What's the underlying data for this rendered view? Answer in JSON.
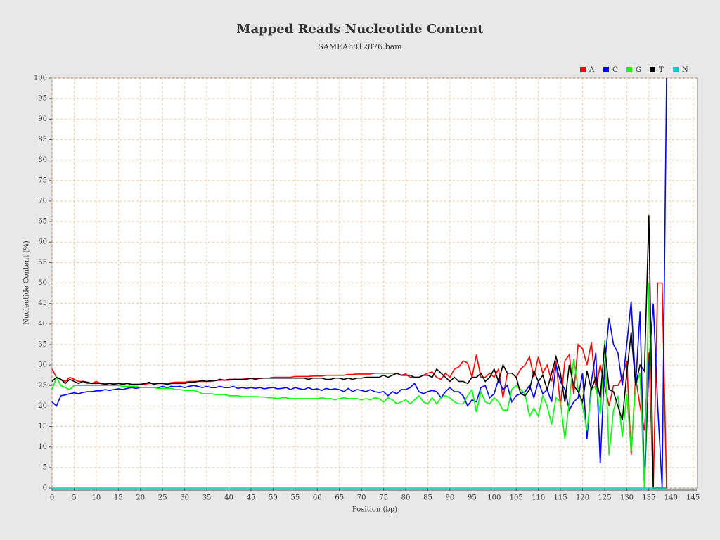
{
  "chart_data": {
    "type": "line",
    "title": "Mapped Reads Nucleotide Content",
    "subtitle": "SAMEA6812876.bam",
    "xlabel": "Position (bp)",
    "ylabel": "Nucleotide Content (%)",
    "xlim": [
      0,
      146
    ],
    "ylim": [
      0,
      100
    ],
    "xticks": [
      0,
      5,
      10,
      15,
      20,
      25,
      30,
      35,
      40,
      45,
      50,
      55,
      60,
      65,
      70,
      75,
      80,
      85,
      90,
      95,
      100,
      105,
      110,
      115,
      120,
      125,
      130,
      135,
      140,
      145
    ],
    "yticks": [
      0,
      5,
      10,
      15,
      20,
      25,
      30,
      35,
      40,
      45,
      50,
      55,
      60,
      65,
      70,
      75,
      80,
      85,
      90,
      95,
      100
    ],
    "grid": true,
    "legend": "top-right",
    "x": [
      0,
      1,
      2,
      3,
      4,
      5,
      6,
      7,
      8,
      9,
      10,
      11,
      12,
      13,
      14,
      15,
      16,
      17,
      18,
      19,
      20,
      21,
      22,
      23,
      24,
      25,
      26,
      27,
      28,
      29,
      30,
      31,
      32,
      33,
      34,
      35,
      36,
      37,
      38,
      39,
      40,
      41,
      42,
      43,
      44,
      45,
      46,
      47,
      48,
      49,
      50,
      51,
      52,
      53,
      54,
      55,
      56,
      57,
      58,
      59,
      60,
      61,
      62,
      63,
      64,
      65,
      66,
      67,
      68,
      69,
      70,
      71,
      72,
      73,
      74,
      75,
      76,
      77,
      78,
      79,
      80,
      81,
      82,
      83,
      84,
      85,
      86,
      87,
      88,
      89,
      90,
      91,
      92,
      93,
      94,
      95,
      96,
      97,
      98,
      99,
      100,
      101,
      102,
      103,
      104,
      105,
      106,
      107,
      108,
      109,
      110,
      111,
      112,
      113,
      114,
      115,
      116,
      117,
      118,
      119,
      120,
      121,
      122,
      123,
      124,
      125,
      126,
      127,
      128,
      129,
      130,
      131,
      132,
      133,
      134,
      135,
      136,
      137,
      138,
      139
    ],
    "series": [
      {
        "name": "A",
        "color": "#ff0000",
        "values": [
          29,
          27,
          26.5,
          26,
          27,
          26.5,
          26,
          26,
          25.5,
          25.5,
          26,
          25.5,
          25.5,
          25.5,
          25.5,
          25.5,
          25.5,
          25.5,
          25.3,
          25.3,
          25.3,
          25.3,
          25.5,
          25.5,
          25.5,
          25.5,
          25.5,
          25.7,
          25.8,
          25.8,
          25.8,
          26,
          26,
          26,
          26,
          26,
          26,
          26.2,
          26.3,
          26.3,
          26.3,
          26.5,
          26.5,
          26.5,
          26.7,
          26.7,
          26.7,
          26.7,
          26.8,
          26.8,
          27,
          27,
          27,
          27,
          27,
          27.2,
          27.2,
          27.2,
          27.2,
          27.3,
          27.3,
          27.3,
          27.5,
          27.5,
          27.5,
          27.5,
          27.5,
          27.7,
          27.7,
          27.8,
          27.8,
          27.8,
          27.8,
          28,
          28,
          28,
          28,
          28,
          28,
          27.5,
          27.8,
          27,
          27,
          27,
          27.5,
          28,
          28.3,
          27,
          26.5,
          28,
          27,
          29,
          29.5,
          31,
          30.5,
          27,
          32.5,
          27,
          27,
          28,
          27,
          29,
          22,
          28,
          28,
          27,
          29,
          30,
          32,
          27,
          32,
          28,
          30,
          26,
          31,
          20,
          31,
          32.5,
          23,
          35,
          34,
          30,
          35.5,
          24,
          30,
          25,
          20,
          25,
          25,
          27,
          31,
          8,
          27,
          20,
          14,
          33,
          0,
          50,
          50,
          0
        ]
      },
      {
        "name": "C",
        "color": "#0000ff",
        "values": [
          21,
          20,
          22.5,
          22.7,
          23,
          23.2,
          23,
          23.3,
          23.5,
          23.5,
          23.7,
          23.7,
          24,
          23.8,
          24,
          24.2,
          24,
          24.3,
          24.5,
          24.3,
          24.5,
          24.5,
          24.5,
          24.5,
          24.5,
          24.8,
          24.5,
          24.8,
          24.7,
          24.8,
          24.5,
          24.8,
          25,
          24.8,
          24.5,
          24.8,
          24.5,
          24.5,
          24.8,
          24.5,
          24.5,
          24.8,
          24.3,
          24.5,
          24.3,
          24.5,
          24.3,
          24.5,
          24.2,
          24.4,
          24.5,
          24.2,
          24.3,
          24.5,
          24,
          24.5,
          24.2,
          24,
          24.5,
          24,
          24.2,
          23.8,
          24.3,
          24,
          24.2,
          24,
          23.5,
          24.3,
          23.5,
          24,
          23.8,
          23.5,
          24,
          23.5,
          23.3,
          23.5,
          22.5,
          23.5,
          23,
          24,
          24,
          24.5,
          25.5,
          23.5,
          23,
          23.5,
          23.8,
          23.5,
          22,
          23.5,
          24.5,
          23.5,
          23.5,
          22.5,
          20,
          21.5,
          21,
          24.5,
          25,
          22,
          23,
          26.5,
          24,
          25,
          21,
          22.5,
          23,
          23.5,
          25,
          22,
          26,
          23,
          24,
          21,
          30,
          26,
          24,
          19,
          21,
          22,
          28,
          12,
          26,
          33,
          6,
          30,
          41.5,
          35,
          33,
          25,
          35,
          45.5,
          25,
          43,
          0,
          30,
          45,
          20,
          0,
          100
        ]
      },
      {
        "name": "G",
        "color": "#00ff00",
        "values": [
          24,
          27,
          25,
          24.5,
          24,
          25,
          25,
          25,
          25,
          25,
          25,
          25,
          25,
          25,
          25,
          25,
          24.8,
          24.8,
          24.8,
          24.8,
          24.5,
          24.5,
          24.5,
          24.5,
          24.3,
          24.3,
          24.3,
          24.3,
          24,
          24,
          23.8,
          23.8,
          23.8,
          23.5,
          23,
          23,
          23,
          22.8,
          22.8,
          22.8,
          22.5,
          22.5,
          22.5,
          22.3,
          22.3,
          22.3,
          22.3,
          22.2,
          22.2,
          22,
          22,
          21.8,
          22,
          22,
          21.8,
          21.8,
          21.8,
          21.8,
          21.8,
          21.8,
          21.8,
          22,
          21.8,
          21.8,
          21.5,
          21.8,
          22,
          21.8,
          21.8,
          21.8,
          21.5,
          21.8,
          21.5,
          22,
          21.8,
          21,
          22,
          21.5,
          20.5,
          21,
          21.5,
          20.5,
          21.5,
          22.5,
          21,
          20.5,
          22,
          20.5,
          22,
          22.5,
          22,
          21,
          20.5,
          20.5,
          22.5,
          24,
          18.5,
          23.5,
          21,
          20.5,
          22,
          21,
          19,
          19,
          24,
          25,
          24,
          23,
          17.5,
          19.5,
          17.5,
          22.5,
          20,
          15.5,
          22,
          21,
          12,
          21,
          31.5,
          24,
          20,
          14,
          24,
          25,
          18,
          36,
          8,
          19,
          22.5,
          12.5,
          23,
          9,
          25,
          28,
          0,
          50,
          0,
          0,
          0,
          0
        ]
      },
      {
        "name": "T",
        "color": "#000000",
        "values": [
          26,
          27,
          26.5,
          25.5,
          26.5,
          26,
          25.5,
          26,
          25.8,
          25.5,
          25.5,
          25.5,
          25.3,
          25.5,
          25.3,
          25.5,
          25.3,
          25.5,
          25.3,
          25.3,
          25.3,
          25.5,
          25.8,
          25.3,
          25.5,
          25.5,
          25.3,
          25.5,
          25.5,
          25.5,
          25.5,
          25.8,
          25.8,
          26,
          26.2,
          26,
          26.2,
          26.2,
          26.5,
          26.3,
          26.5,
          26.5,
          26.5,
          26.5,
          26.5,
          26.8,
          26.5,
          26.8,
          26.8,
          26.8,
          26.8,
          26.8,
          26.8,
          26.8,
          26.8,
          26.8,
          26.8,
          26.8,
          26.5,
          26.8,
          26.8,
          26.8,
          26.5,
          26.5,
          26.8,
          26.8,
          26.5,
          26.8,
          26.5,
          26.8,
          26.8,
          27,
          27,
          27,
          27,
          27.5,
          27,
          27.5,
          28,
          27.5,
          27.5,
          27.5,
          27,
          27,
          27.5,
          27.5,
          27,
          29,
          28,
          27,
          26,
          27,
          26,
          26,
          25.5,
          27,
          27,
          28,
          26,
          27,
          29,
          26,
          30,
          28,
          28,
          27,
          23,
          22.5,
          24,
          28.5,
          26,
          27.5,
          24,
          28,
          32,
          28,
          21,
          30,
          25,
          23.5,
          21,
          28.5,
          24,
          27,
          22,
          35,
          24,
          23.5,
          20,
          16.5,
          28,
          38,
          25,
          30,
          28.5,
          66.5,
          0,
          0,
          0,
          0
        ]
      },
      {
        "name": "N",
        "color": "#00cccc",
        "values": [
          0,
          0,
          0,
          0,
          0,
          0,
          0,
          0,
          0,
          0,
          0,
          0,
          0,
          0,
          0,
          0,
          0,
          0,
          0,
          0,
          0,
          0,
          0,
          0,
          0,
          0,
          0,
          0,
          0,
          0,
          0,
          0,
          0,
          0,
          0,
          0,
          0,
          0,
          0,
          0,
          0,
          0,
          0,
          0,
          0,
          0,
          0,
          0,
          0,
          0,
          0,
          0,
          0,
          0,
          0,
          0,
          0,
          0,
          0,
          0,
          0,
          0,
          0,
          0,
          0,
          0,
          0,
          0,
          0,
          0,
          0,
          0,
          0,
          0,
          0,
          0,
          0,
          0,
          0,
          0,
          0,
          0,
          0,
          0,
          0,
          0,
          0,
          0,
          0,
          0,
          0,
          0,
          0,
          0,
          0,
          0,
          0,
          0,
          0,
          0,
          0,
          0,
          0,
          0,
          0,
          0,
          0,
          0,
          0,
          0,
          0,
          0,
          0,
          0,
          0,
          0,
          0,
          0,
          0,
          0,
          0,
          0,
          0,
          0,
          0,
          0,
          0,
          0,
          0,
          0,
          0,
          0,
          0,
          0,
          0,
          0,
          0,
          0,
          0,
          0
        ]
      }
    ]
  }
}
